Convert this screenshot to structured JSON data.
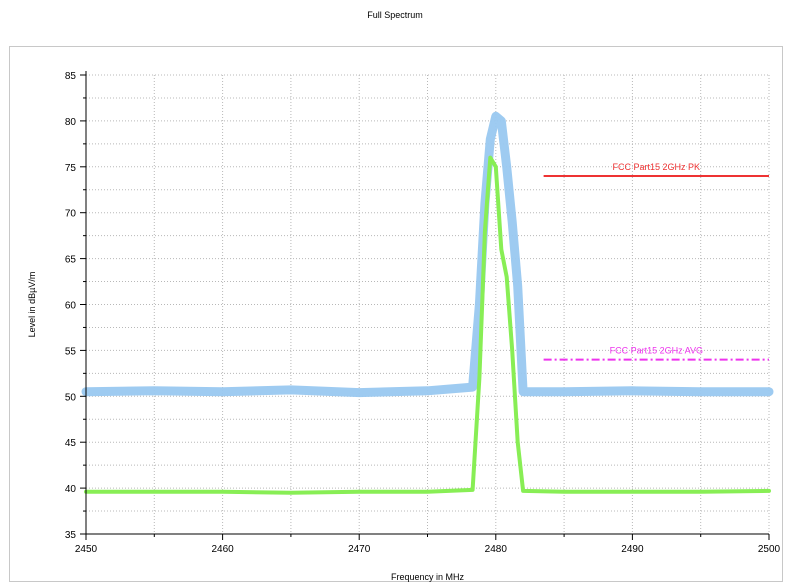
{
  "chart_data": {
    "type": "line",
    "title": "Full Spectrum",
    "xlabel": "Frequency in MHz",
    "ylabel": "Level in dBµV/m",
    "xlim": [
      2450,
      2500
    ],
    "ylim": [
      35,
      85
    ],
    "xticks": [
      2450,
      2460,
      2470,
      2480,
      2490,
      2500
    ],
    "yticks": [
      35,
      40,
      45,
      50,
      55,
      60,
      65,
      70,
      75,
      80,
      85
    ],
    "grid": true,
    "series": [
      {
        "color": "#99c8f0",
        "x": [
          2450,
          2455,
          2460,
          2465,
          2470,
          2475,
          2478.3,
          2478.8,
          2479.2,
          2479.6,
          2480.0,
          2480.4,
          2480.8,
          2481.2,
          2481.6,
          2482.0,
          2485,
          2490,
          2495,
          2500
        ],
        "y": [
          50.5,
          50.6,
          50.5,
          50.7,
          50.4,
          50.6,
          51,
          60,
          71,
          78,
          80.5,
          80,
          75,
          69,
          62,
          50.5,
          50.5,
          50.6,
          50.5,
          50.5
        ]
      },
      {
        "color": "#88ee55",
        "x": [
          2450,
          2455,
          2460,
          2465,
          2470,
          2475,
          2478.3,
          2478.8,
          2479.2,
          2479.6,
          2480.0,
          2480.4,
          2480.8,
          2481.2,
          2481.6,
          2482.0,
          2485,
          2490,
          2495,
          2500
        ],
        "y": [
          39.6,
          39.6,
          39.6,
          39.5,
          39.6,
          39.6,
          39.8,
          52,
          68,
          76,
          75,
          66,
          63,
          55,
          45,
          39.7,
          39.6,
          39.6,
          39.6,
          39.7
        ]
      }
    ],
    "limits": [
      {
        "name": "FCC Part15 2GHz  PK",
        "y": 74,
        "x": [
          2483.5,
          2500
        ],
        "color": "#ee3333",
        "style": "solid"
      },
      {
        "name": "FCC Part15 2GHz  AVG",
        "y": 54,
        "x": [
          2483.5,
          2500
        ],
        "color": "#ee33ee",
        "style": "dashdot"
      }
    ]
  }
}
